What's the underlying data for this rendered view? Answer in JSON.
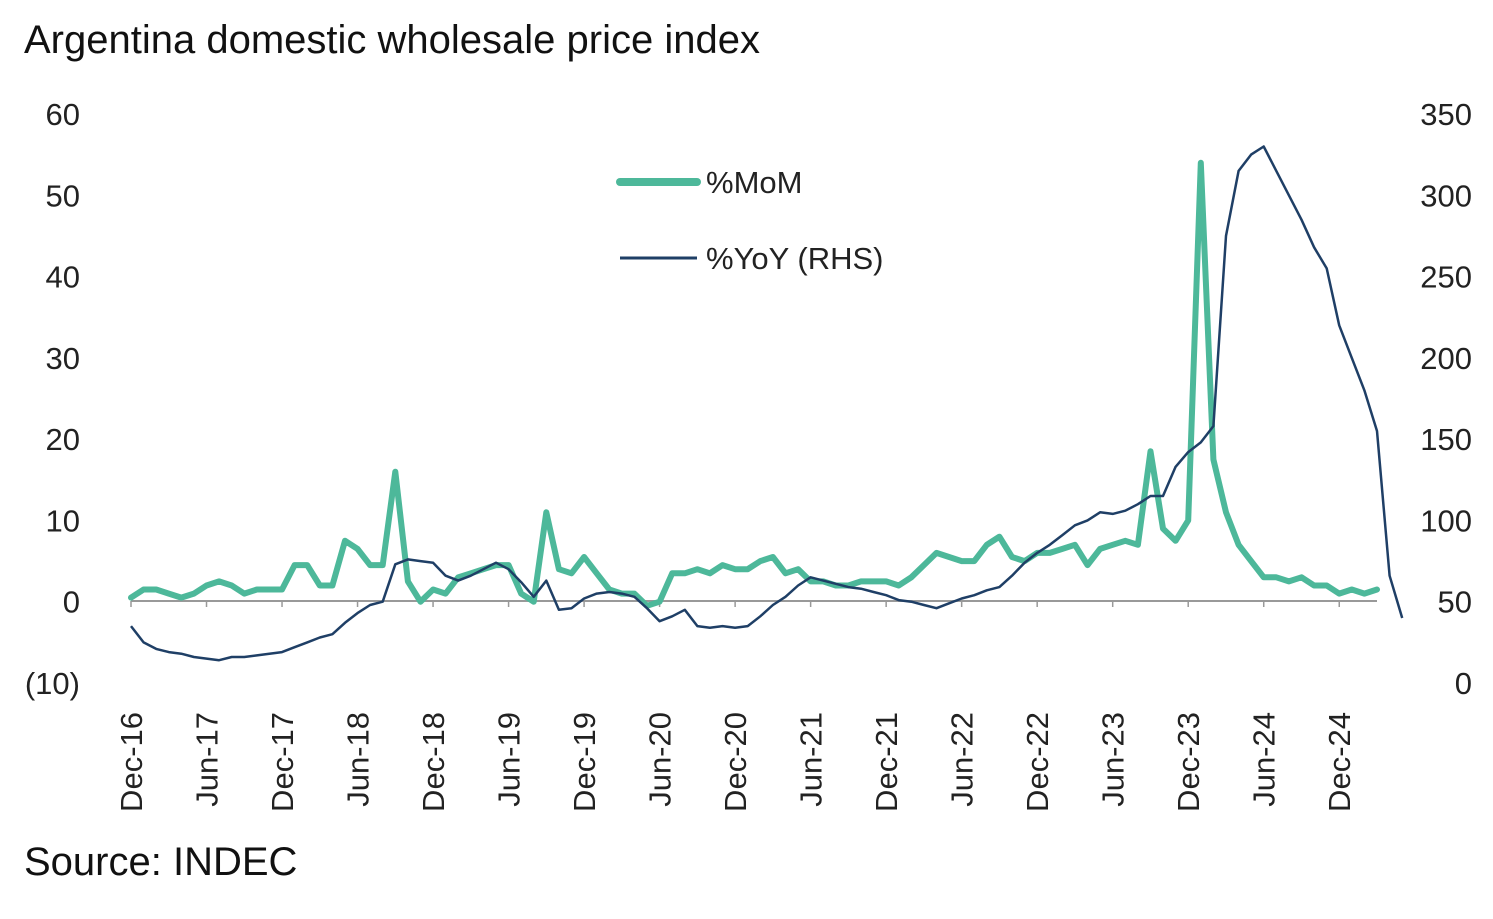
{
  "header": {
    "title": "Argentina domestic wholesale price index"
  },
  "footer": {
    "source": "Source: INDEC"
  },
  "chart_data": {
    "type": "line",
    "title": "Argentina domestic wholesale price index",
    "xlabel": "",
    "ylabel": "",
    "x_start": "Dec-16",
    "x_tick_labels": [
      "Dec-16",
      "Jun-17",
      "Dec-17",
      "Jun-18",
      "Dec-18",
      "Jun-19",
      "Dec-19",
      "Jun-20",
      "Dec-20",
      "Jun-21",
      "Dec-21",
      "Jun-22",
      "Dec-22",
      "Jun-23",
      "Dec-23",
      "Jun-24",
      "Dec-24"
    ],
    "y_left": {
      "min": -10,
      "max": 60,
      "step": 10,
      "tick_labels": [
        "(10)",
        "0",
        "10",
        "20",
        "30",
        "40",
        "50",
        "60"
      ]
    },
    "y_right": {
      "min": 0,
      "max": 350,
      "step": 50,
      "tick_labels": [
        "0",
        "50",
        "100",
        "150",
        "200",
        "250",
        "300",
        "350"
      ]
    },
    "grid": false,
    "legend_position": "top-center",
    "colors": {
      "mom": "#4db89a",
      "yoy": "#1f3f66",
      "axis": "#999999"
    },
    "series": [
      {
        "name": "%MoM",
        "axis": "left",
        "values": [
          0.5,
          1.5,
          1.5,
          1,
          0.5,
          1,
          2,
          2.5,
          2,
          1,
          1.5,
          1.5,
          1.5,
          4.5,
          4.5,
          2,
          2,
          7.5,
          6.5,
          4.5,
          4.5,
          16,
          2.5,
          0,
          1.5,
          1,
          3,
          3.5,
          4,
          4.5,
          4.5,
          1,
          0,
          11,
          4,
          3.5,
          5.5,
          3.5,
          1.5,
          1,
          1,
          -0.5,
          0,
          3.5,
          3.5,
          4,
          3.5,
          4.5,
          4,
          4,
          5,
          5.5,
          3.5,
          4,
          2.5,
          2.5,
          2,
          2,
          2.5,
          2.5,
          2.5,
          2,
          3,
          4.5,
          6,
          5.5,
          5,
          5,
          7,
          8,
          5.5,
          5,
          6,
          6,
          6.5,
          7,
          4.5,
          6.5,
          7,
          7.5,
          7,
          18.5,
          9,
          7.5,
          10,
          54,
          17.5,
          11,
          7,
          5,
          3,
          3,
          2.5,
          3,
          2,
          2,
          1,
          1.5,
          1,
          1.5
        ]
      },
      {
        "name": "%YoY (RHS)",
        "axis": "right",
        "values": [
          35,
          25,
          21,
          19,
          18,
          16,
          15,
          14,
          16,
          16,
          17,
          18,
          19,
          22,
          25,
          28,
          30,
          37,
          43,
          48,
          50,
          73,
          76,
          75,
          74,
          66,
          63,
          66,
          70,
          74,
          70,
          62,
          53,
          63,
          45,
          46,
          52,
          55,
          56,
          55,
          53,
          46,
          38,
          41,
          45,
          35,
          34,
          35,
          34,
          35,
          41,
          48,
          53,
          60,
          65,
          63,
          61,
          59,
          58,
          56,
          54,
          51,
          50,
          48,
          46,
          49,
          52,
          54,
          57,
          59,
          66,
          74,
          80,
          85,
          91,
          97,
          100,
          105,
          104,
          106,
          110,
          115,
          115,
          133,
          142,
          148,
          158,
          275,
          315,
          325,
          330,
          315,
          300,
          285,
          268,
          255,
          220,
          200,
          180,
          155,
          66,
          40
        ]
      }
    ]
  }
}
